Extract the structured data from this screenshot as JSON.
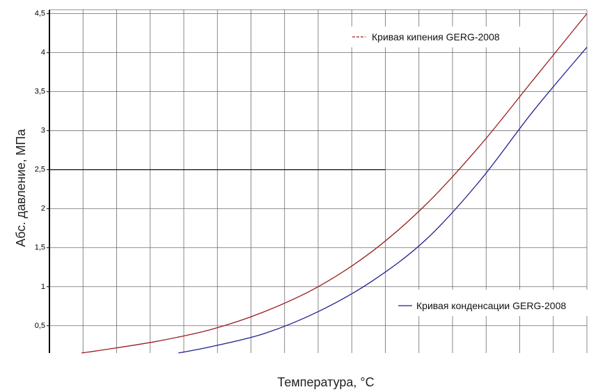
{
  "chart_data": {
    "type": "line",
    "title": "",
    "xlabel": "Температура, °С",
    "ylabel": "Абс. давление, МПа",
    "ylim": [
      0.15,
      4.55
    ],
    "y_ticks": [
      "0,5",
      "1",
      "1,5",
      "2",
      "2,5",
      "3",
      "3,5",
      "4",
      "4,5"
    ],
    "y_tick_values": [
      0.5,
      1,
      1.5,
      2,
      2.5,
      3,
      3.5,
      4,
      4.5
    ],
    "x_tick_labels_shown": false,
    "grid": true,
    "series": [
      {
        "name": "Кривая кипения GERG-2008",
        "color": "#9b1c1c",
        "points": [
          [
            0.06,
            0.15
          ],
          [
            0.1,
            0.19
          ],
          [
            0.2,
            0.3
          ],
          [
            0.3,
            0.45
          ],
          [
            0.4,
            0.68
          ],
          [
            0.5,
            1.0
          ],
          [
            0.6,
            1.45
          ],
          [
            0.7,
            2.05
          ],
          [
            0.8,
            2.8
          ],
          [
            0.9,
            3.65
          ],
          [
            1.0,
            4.5
          ]
        ]
      },
      {
        "name": "Кривая конденсации GERG-2008",
        "color": "#1f1f8f",
        "points": [
          [
            0.24,
            0.15
          ],
          [
            0.3,
            0.23
          ],
          [
            0.4,
            0.4
          ],
          [
            0.5,
            0.68
          ],
          [
            0.6,
            1.07
          ],
          [
            0.7,
            1.6
          ],
          [
            0.8,
            2.35
          ],
          [
            0.9,
            3.25
          ],
          [
            1.0,
            4.07
          ]
        ]
      }
    ],
    "legend": {
      "top": "Кривая кипения GERG-2008",
      "bottom": "Кривая конденсации GERG-2008"
    }
  }
}
